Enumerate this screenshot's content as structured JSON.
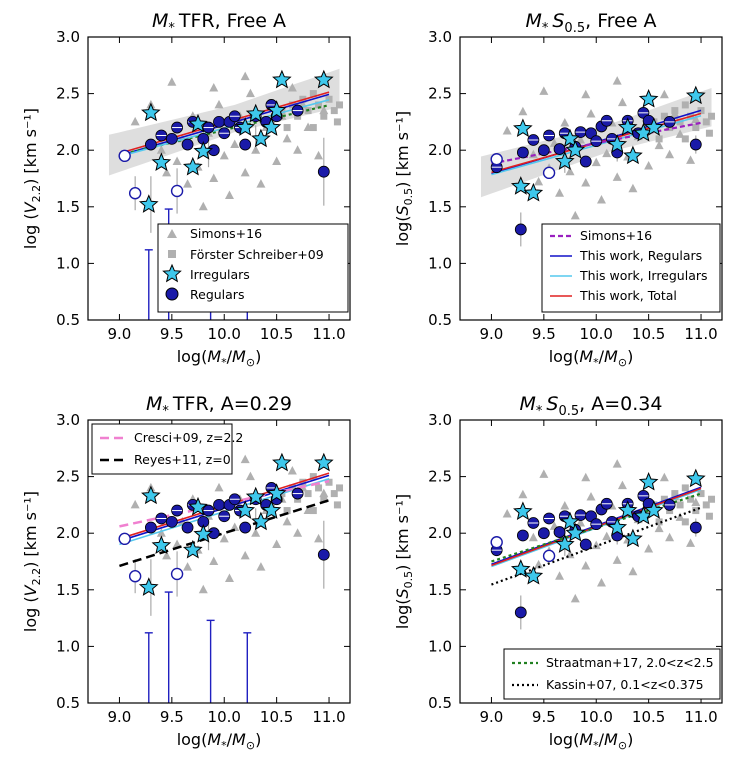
{
  "chart_data": [
    {
      "id": "p1",
      "type": "scatter",
      "title": "M* TFR, Free A",
      "title_math": "M",
      "title_sub": "*",
      "title_rest": "TFR, Free A",
      "xlabel": "log(M*/M⊙)",
      "ylabel": "log (V2.2) [km s⁻¹]",
      "ylabel_main": "log",
      "ylabel_var": "V",
      "ylabel_sub": "2.2",
      "ylabel_unit": "[km s⁻¹]",
      "xlim": [
        8.7,
        11.2
      ],
      "ylim": [
        0.5,
        3.0
      ],
      "xticks": [
        "9.0",
        "9.5",
        "10.0",
        "10.5",
        "11.0"
      ],
      "yticks": [
        "0.5",
        "1.0",
        "1.5",
        "2.0",
        "2.5",
        "3.0"
      ],
      "legend_position": "lower-right",
      "legend": [
        "Simons+16",
        "Förster Schreiber+09",
        "Irregulars",
        "Regulars"
      ]
    },
    {
      "id": "p2",
      "type": "scatter",
      "title": "M* S0.5, Free A",
      "title_math": "M",
      "title_sub": "*",
      "title_s": "S",
      "title_ssub": "0.5",
      "title_rest": "Free A",
      "xlabel": "log(M*/M⊙)",
      "ylabel": "log(S0.5) [km s⁻¹]",
      "ylabel_main": "log",
      "ylabel_var": "S",
      "ylabel_sub": "0.5",
      "ylabel_unit": "[km s⁻¹]",
      "xlim": [
        8.7,
        11.2
      ],
      "ylim": [
        0.5,
        3.0
      ],
      "xticks": [
        "9.0",
        "9.5",
        "10.0",
        "10.5",
        "11.0"
      ],
      "yticks": [
        "0.5",
        "1.0",
        "1.5",
        "2.0",
        "2.5",
        "3.0"
      ],
      "legend_position": "lower-right",
      "legend": [
        "Simons+16",
        "This work, Regulars",
        "This work, Irregulars",
        "This work, Total"
      ]
    },
    {
      "id": "p3",
      "type": "scatter",
      "title": "M* TFR, A=0.29",
      "title_math": "M",
      "title_sub": "*",
      "title_rest": "TFR, A=0.29",
      "xlabel": "log(M*/M⊙)",
      "ylabel": "log (V2.2) [km s⁻¹]",
      "ylabel_main": "log",
      "ylabel_var": "V",
      "ylabel_sub": "2.2",
      "ylabel_unit": "[km s⁻¹]",
      "xlim": [
        8.7,
        11.2
      ],
      "ylim": [
        0.5,
        3.0
      ],
      "xticks": [
        "9.0",
        "9.5",
        "10.0",
        "10.5",
        "11.0"
      ],
      "yticks": [
        "0.5",
        "1.0",
        "1.5",
        "2.0",
        "2.5",
        "3.0"
      ],
      "legend_position": "upper-left",
      "legend": [
        "Cresci+09, z=2.2",
        "Reyes+11, z=0"
      ]
    },
    {
      "id": "p4",
      "type": "scatter",
      "title": "M* S0.5, A=0.34",
      "title_math": "M",
      "title_sub": "*",
      "title_s": "S",
      "title_ssub": "0.5",
      "title_rest": "A=0.34",
      "xlabel": "log(M*/M⊙)",
      "ylabel": "log(S0.5) [km s⁻¹]",
      "ylabel_main": "log",
      "ylabel_var": "S",
      "ylabel_sub": "0.5",
      "ylabel_unit": "[km s⁻¹]",
      "xlim": [
        8.7,
        11.2
      ],
      "ylim": [
        0.5,
        3.0
      ],
      "xticks": [
        "9.0",
        "9.5",
        "10.0",
        "10.5",
        "11.0"
      ],
      "yticks": [
        "0.5",
        "1.0",
        "1.5",
        "2.0",
        "2.5",
        "3.0"
      ],
      "legend_position": "lower-right",
      "legend": [
        "Straatman+17, 2.0<z<2.5",
        "Kassin+07, 0.1<z<0.375"
      ]
    }
  ],
  "series_colors": {
    "simons": "#b0b0b0",
    "forster": "#b0b0b0",
    "irregular": "#3ec8ec",
    "regular": "#1a1aa8",
    "regular_line": "#1010c8",
    "irregular_line": "#55c8ee",
    "total_line": "#e02020",
    "simons_line": "#9a20c0",
    "straatman": "#208020",
    "cresci": "#f080d0",
    "reyes": "#000000",
    "kassin": "#000000"
  },
  "samples": {
    "simons_triangles": [
      [
        9.15,
        2.25
      ],
      [
        9.3,
        2.4
      ],
      [
        9.4,
        2.0
      ],
      [
        9.5,
        2.6
      ],
      [
        9.55,
        1.9
      ],
      [
        9.6,
        2.1
      ],
      [
        9.65,
        1.7
      ],
      [
        9.7,
        2.3
      ],
      [
        9.75,
        1.85
      ],
      [
        9.8,
        1.5
      ],
      [
        9.85,
        2.15
      ],
      [
        9.9,
        1.75
      ],
      [
        9.95,
        2.4
      ],
      [
        10.0,
        1.95
      ],
      [
        10.05,
        1.6
      ],
      [
        10.1,
        2.05
      ],
      [
        10.15,
        2.3
      ],
      [
        10.2,
        1.8
      ],
      [
        10.25,
        2.5
      ],
      [
        10.3,
        2.0
      ],
      [
        10.35,
        1.7
      ],
      [
        10.4,
        2.2
      ],
      [
        10.45,
        2.4
      ],
      [
        10.5,
        1.9
      ],
      [
        10.55,
        2.3
      ],
      [
        10.6,
        2.1
      ],
      [
        10.7,
        2.0
      ],
      [
        10.75,
        2.4
      ],
      [
        10.8,
        2.2
      ],
      [
        10.9,
        1.95
      ],
      [
        10.95,
        2.35
      ],
      [
        9.9,
        2.55
      ],
      [
        10.2,
        2.65
      ],
      [
        9.45,
        1.8
      ],
      [
        10.65,
        2.55
      ]
    ],
    "forster_squares": [
      [
        10.45,
        2.25
      ],
      [
        10.55,
        2.35
      ],
      [
        10.65,
        2.4
      ],
      [
        10.7,
        2.3
      ],
      [
        10.75,
        2.45
      ],
      [
        10.8,
        2.35
      ],
      [
        10.85,
        2.5
      ],
      [
        10.9,
        2.4
      ],
      [
        10.95,
        2.3
      ],
      [
        11.0,
        2.45
      ],
      [
        11.05,
        2.35
      ],
      [
        11.08,
        2.25
      ],
      [
        11.1,
        2.4
      ],
      [
        10.6,
        2.2
      ],
      [
        10.85,
        2.2
      ]
    ],
    "irregulars": [
      [
        9.28,
        1.52
      ],
      [
        9.3,
        2.33
      ],
      [
        9.4,
        1.89
      ],
      [
        9.7,
        1.85
      ],
      [
        9.75,
        2.23
      ],
      [
        9.8,
        1.99
      ],
      [
        10.2,
        2.2
      ],
      [
        10.3,
        2.32
      ],
      [
        10.35,
        2.1
      ],
      [
        10.45,
        2.2
      ],
      [
        10.5,
        2.35
      ],
      [
        10.55,
        2.62
      ],
      [
        10.95,
        2.62
      ]
    ],
    "regulars": [
      [
        9.05,
        1.95
      ],
      [
        9.3,
        2.05
      ],
      [
        9.4,
        2.13
      ],
      [
        9.5,
        2.1
      ],
      [
        9.55,
        2.2
      ],
      [
        9.65,
        2.05
      ],
      [
        9.7,
        2.25
      ],
      [
        9.8,
        2.1
      ],
      [
        9.85,
        2.2
      ],
      [
        9.95,
        2.25
      ],
      [
        10.0,
        2.15
      ],
      [
        10.05,
        2.25
      ],
      [
        10.15,
        2.2
      ],
      [
        10.2,
        2.05
      ],
      [
        10.3,
        2.3
      ],
      [
        10.4,
        2.25
      ],
      [
        10.45,
        2.4
      ],
      [
        10.5,
        2.3
      ],
      [
        10.7,
        2.35
      ],
      [
        10.95,
        1.81
      ],
      [
        10.1,
        2.3
      ],
      [
        9.9,
        2.0
      ]
    ],
    "open_regulars": [
      [
        9.15,
        1.62
      ],
      [
        9.55,
        1.64
      ],
      [
        9.05,
        1.95
      ]
    ]
  }
}
